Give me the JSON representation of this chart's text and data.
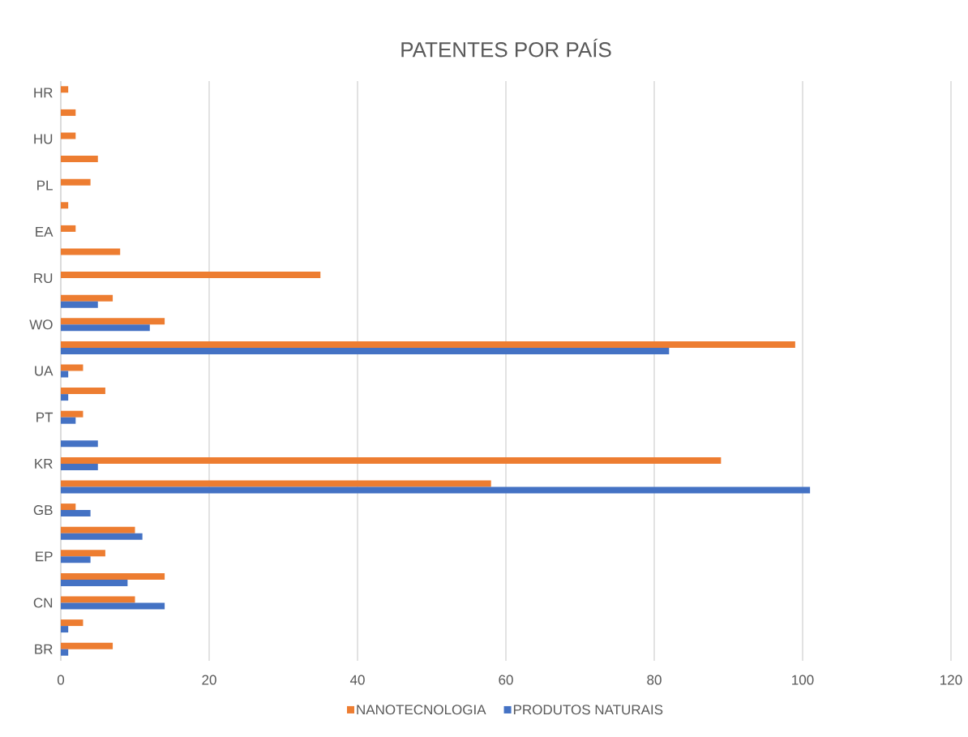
{
  "chart_data": {
    "type": "bar",
    "orientation": "horizontal",
    "title": "PATENTES POR PAÍS",
    "categories": [
      "HR",
      null,
      "HU",
      null,
      "PL",
      null,
      "EA",
      null,
      "RU",
      null,
      "WO",
      null,
      "UA",
      null,
      "PT",
      null,
      "KR",
      null,
      "GB",
      null,
      "EP",
      null,
      "CN",
      null,
      "BR"
    ],
    "series": [
      {
        "name": "NANOTECNOLOGIA",
        "color": "#ed7d31",
        "values": [
          1,
          2,
          2,
          5,
          4,
          1,
          2,
          8,
          35,
          7,
          14,
          99,
          3,
          6,
          3,
          null,
          89,
          58,
          2,
          10,
          6,
          14,
          10,
          3,
          7
        ]
      },
      {
        "name": "PRODUTOS NATURAIS",
        "color": "#4472c4",
        "values": [
          null,
          null,
          null,
          null,
          null,
          null,
          null,
          null,
          null,
          5,
          12,
          82,
          1,
          1,
          2,
          5,
          5,
          101,
          4,
          11,
          4,
          9,
          14,
          1,
          1
        ]
      }
    ],
    "xlim": [
      0,
      120
    ],
    "xticks": [
      0,
      20,
      40,
      60,
      80,
      100,
      120
    ],
    "grid": "x",
    "legend": "bottom"
  }
}
